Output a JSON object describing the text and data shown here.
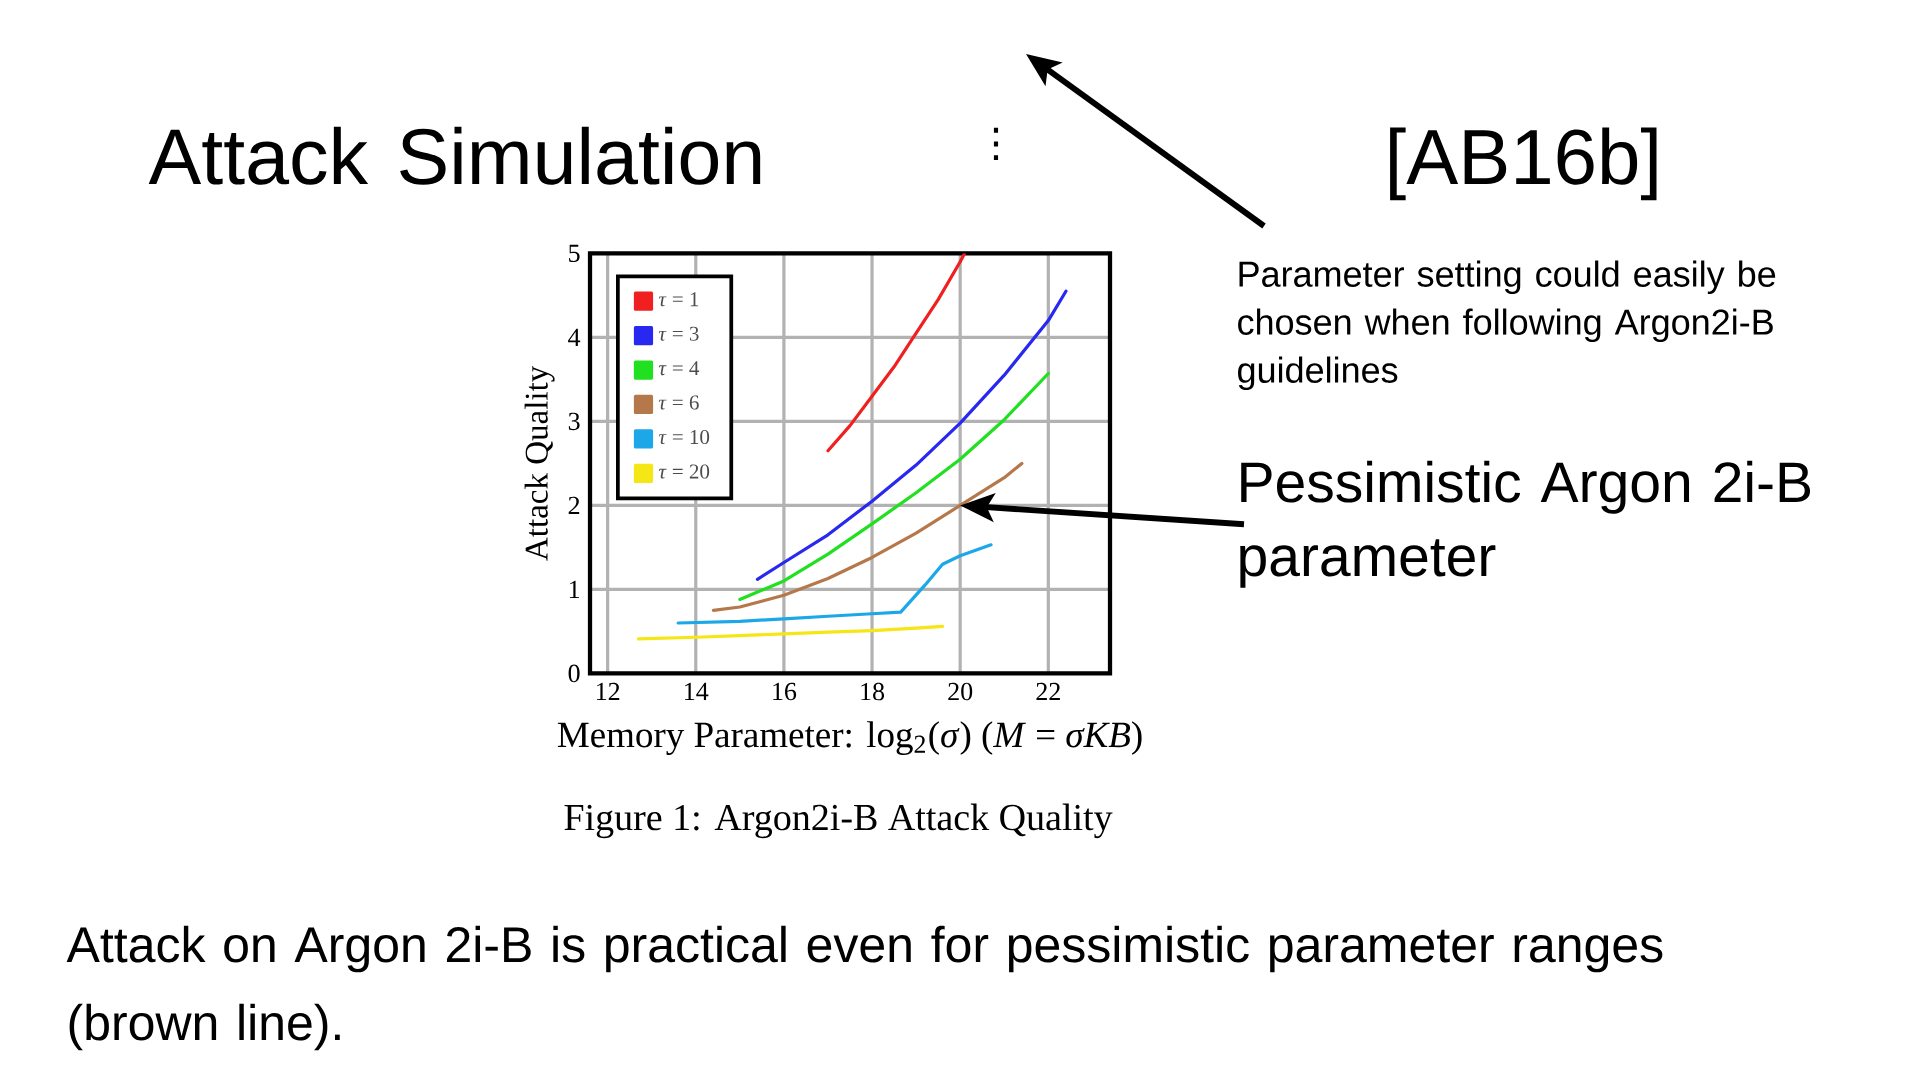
{
  "chart_data": {
    "type": "line",
    "title": "Attack Simulation",
    "xlabel": "Memory Parameter: log$_{2}$(*σ*)   (*M* = *σKB*)",
    "ylabel": "Attack Quality",
    "xlim": [
      11.6,
      23.4
    ],
    "ylim": [
      0,
      5
    ],
    "xticks": [
      12,
      14,
      16,
      18,
      20,
      22
    ],
    "yticks": [
      0,
      1,
      2,
      3,
      4,
      5
    ],
    "grid": true,
    "legend": "top left",
    "series": [
      {
        "name": "*τ* = 1",
        "color": "#f02020",
        "x": [
          17.0,
          17.5,
          18,
          18.5,
          19,
          19.5,
          20,
          20.1
        ],
        "values": [
          2.65,
          2.95,
          3.3,
          3.65,
          4.05,
          4.45,
          4.9,
          5.0
        ]
      },
      {
        "name": "*τ* = 3",
        "color": "#2828f0",
        "x": [
          15.4,
          16,
          17,
          18,
          19,
          20,
          21,
          22,
          22.4
        ],
        "values": [
          1.12,
          1.32,
          1.65,
          2.05,
          2.48,
          2.98,
          3.55,
          4.2,
          4.55
        ]
      },
      {
        "name": "*τ* = 4",
        "color": "#20e020",
        "x": [
          15.0,
          16,
          17,
          18,
          19,
          20,
          21,
          22
        ],
        "values": [
          0.88,
          1.1,
          1.42,
          1.78,
          2.15,
          2.55,
          3.02,
          3.57
        ]
      },
      {
        "name": "*τ* = 6",
        "color": "#b5784a",
        "x": [
          14.4,
          15,
          16,
          17,
          18,
          19,
          20,
          21,
          21.4
        ],
        "values": [
          0.75,
          0.79,
          0.93,
          1.13,
          1.38,
          1.67,
          2.0,
          2.33,
          2.5
        ]
      },
      {
        "name": "*τ* = 10",
        "color": "#1ca8e8",
        "x": [
          13.6,
          15,
          16,
          17,
          18,
          18.65,
          19.2,
          19.6,
          20,
          20.7
        ],
        "values": [
          0.6,
          0.62,
          0.65,
          0.68,
          0.71,
          0.73,
          1.05,
          1.3,
          1.4,
          1.53
        ]
      },
      {
        "name": "*τ* = 20",
        "color": "#f5e616",
        "x": [
          12.7,
          14,
          15,
          16,
          17,
          18,
          19,
          19.6
        ],
        "values": [
          0.41,
          0.43,
          0.45,
          0.47,
          0.49,
          0.51,
          0.54,
          0.56
        ]
      }
    ],
    "annotations": [
      "⋮",
      "[AB16b]",
      "Parameter setting could easily be chosen when following Argon2i-B guidelines",
      {
        "text": "Pessimistic Argon 2i-B parameter",
        "x": 20,
        "y": 2
      },
      "Figure 1: Argon2i-B Attack Quality",
      "Attack on Argon 2i-B is practical even for pessimistic parameter ranges (brown line)."
    ]
  }
}
